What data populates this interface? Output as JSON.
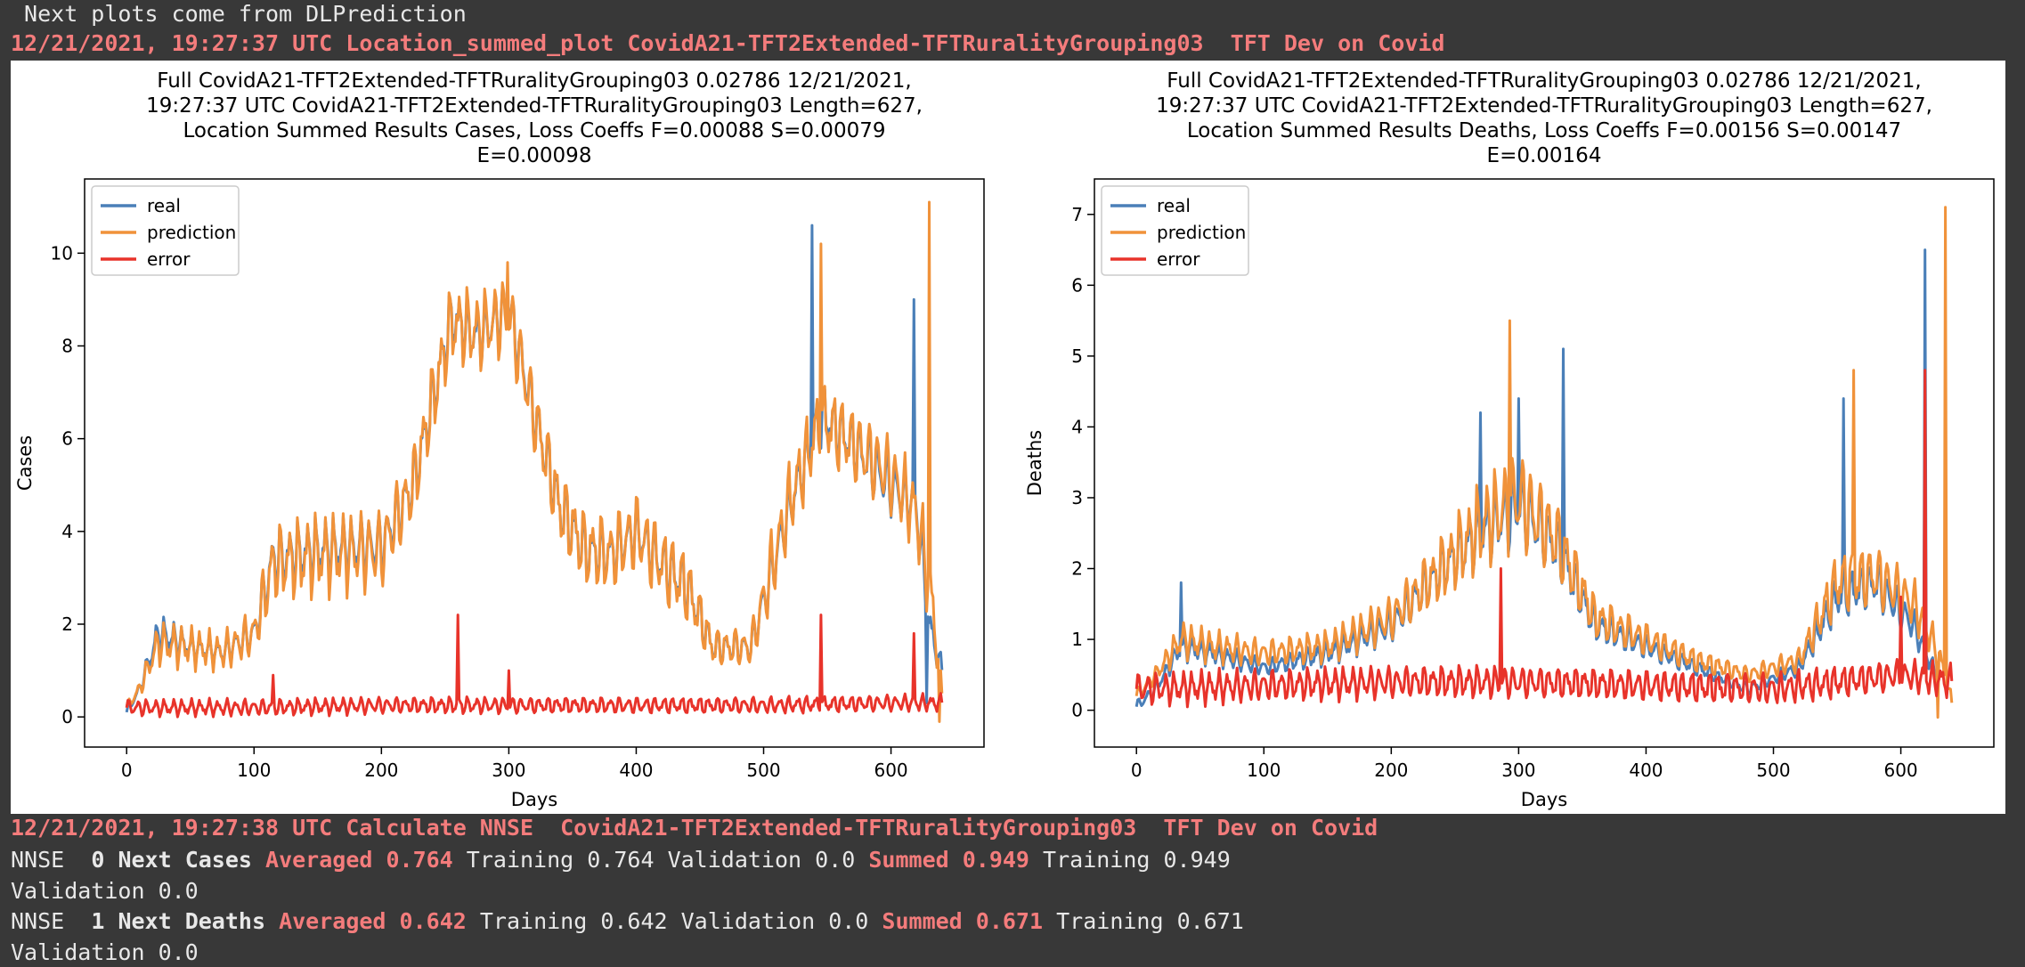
{
  "header": {
    "intro": " Next plots come from DLPrediction",
    "plot_heading": "12/21/2021, 19:27:37 UTC Location_summed_plot CovidA21-TFT2Extended-TFTRuralityGrouping03  TFT Dev on Covid"
  },
  "colors": {
    "real": "#4a7fb8",
    "prediction": "#f0923a",
    "error": "#e8332a",
    "accent_text": "#f47c7c"
  },
  "chart_data": [
    {
      "type": "line",
      "title_lines": [
        "Full CovidA21-TFT2Extended-TFTRuralityGrouping03 0.02786 12/21/2021,",
        "19:27:37 UTC CovidA21-TFT2Extended-TFTRuralityGrouping03 Length=627,",
        "Location Summed Results Cases, Loss Coeffs F=0.00088 S=0.00079",
        "E=0.00098"
      ],
      "xlabel": "Days",
      "ylabel": "Cases",
      "xlim": [
        -33,
        673
      ],
      "ylim": [
        -0.65,
        11.6
      ],
      "xticks": [
        0,
        100,
        200,
        300,
        400,
        500,
        600
      ],
      "yticks": [
        0,
        2,
        4,
        6,
        8,
        10
      ],
      "legend_position": "upper-left",
      "grid": false,
      "series": [
        {
          "name": "real",
          "key": "real",
          "keypoints": [
            [
              0,
              0.1
            ],
            [
              10,
              0.6
            ],
            [
              25,
              1.8
            ],
            [
              50,
              1.5
            ],
            [
              75,
              1.4
            ],
            [
              100,
              1.8
            ],
            [
              115,
              3.4
            ],
            [
              150,
              3.6
            ],
            [
              200,
              3.7
            ],
            [
              225,
              5.0
            ],
            [
              240,
              6.8
            ],
            [
              255,
              8.6
            ],
            [
              275,
              8.2
            ],
            [
              300,
              8.8
            ],
            [
              320,
              6.5
            ],
            [
              340,
              4.5
            ],
            [
              360,
              3.6
            ],
            [
              380,
              3.5
            ],
            [
              400,
              4.0
            ],
            [
              420,
              3.3
            ],
            [
              440,
              2.8
            ],
            [
              460,
              1.5
            ],
            [
              490,
              1.5
            ],
            [
              520,
              4.5
            ],
            [
              545,
              6.5
            ],
            [
              565,
              6.0
            ],
            [
              600,
              5.0
            ],
            [
              620,
              4.5
            ],
            [
              630,
              2.0
            ],
            [
              640,
              1.0
            ]
          ],
          "amplitude": 0.85,
          "spikes": [
            [
              538,
              10.6
            ],
            [
              618,
              9.0
            ],
            [
              628,
              0.3
            ]
          ]
        },
        {
          "name": "prediction",
          "key": "prediction",
          "keypoints": [
            [
              0,
              0.2
            ],
            [
              10,
              0.6
            ],
            [
              25,
              1.6
            ],
            [
              50,
              1.5
            ],
            [
              75,
              1.4
            ],
            [
              100,
              1.8
            ],
            [
              115,
              3.3
            ],
            [
              150,
              3.5
            ],
            [
              200,
              3.6
            ],
            [
              225,
              5.0
            ],
            [
              240,
              6.8
            ],
            [
              255,
              8.5
            ],
            [
              275,
              8.3
            ],
            [
              300,
              8.7
            ],
            [
              320,
              6.5
            ],
            [
              340,
              4.5
            ],
            [
              360,
              3.6
            ],
            [
              380,
              3.5
            ],
            [
              400,
              4.0
            ],
            [
              420,
              3.3
            ],
            [
              440,
              2.8
            ],
            [
              460,
              1.5
            ],
            [
              490,
              1.5
            ],
            [
              520,
              4.6
            ],
            [
              545,
              6.4
            ],
            [
              565,
              6.0
            ],
            [
              600,
              5.2
            ],
            [
              620,
              4.4
            ],
            [
              632,
              2.5
            ],
            [
              640,
              0.5
            ]
          ],
          "amplitude": 1.05,
          "spikes": [
            [
              299,
              9.8
            ],
            [
              545,
              10.2
            ],
            [
              630,
              11.1
            ],
            [
              638,
              -0.1
            ]
          ]
        },
        {
          "name": "error",
          "key": "error",
          "keypoints": [
            [
              0,
              0.2
            ],
            [
              100,
              0.2
            ],
            [
              200,
              0.25
            ],
            [
              300,
              0.25
            ],
            [
              400,
              0.25
            ],
            [
              500,
              0.25
            ],
            [
              600,
              0.3
            ],
            [
              640,
              0.3
            ]
          ],
          "amplitude": 0.22,
          "spikes": [
            [
              115,
              0.9
            ],
            [
              260,
              2.2
            ],
            [
              300,
              1.0
            ],
            [
              545,
              2.2
            ],
            [
              618,
              1.8
            ]
          ]
        }
      ]
    },
    {
      "type": "line",
      "title_lines": [
        "Full CovidA21-TFT2Extended-TFTRuralityGrouping03 0.02786 12/21/2021,",
        "19:27:37 UTC CovidA21-TFT2Extended-TFTRuralityGrouping03 Length=627,",
        "Location Summed Results Deaths, Loss Coeffs F=0.00156 S=0.00147",
        "E=0.00164"
      ],
      "xlabel": "Days",
      "ylabel": "Deaths",
      "xlim": [
        -33,
        673
      ],
      "ylim": [
        -0.52,
        7.5
      ],
      "xticks": [
        0,
        100,
        200,
        300,
        400,
        500,
        600
      ],
      "yticks": [
        0,
        1,
        2,
        3,
        4,
        5,
        6,
        7
      ],
      "legend_position": "upper-left",
      "grid": false,
      "series": [
        {
          "name": "real",
          "key": "real",
          "keypoints": [
            [
              0,
              0.05
            ],
            [
              15,
              0.3
            ],
            [
              35,
              0.9
            ],
            [
              60,
              0.8
            ],
            [
              100,
              0.6
            ],
            [
              150,
              0.8
            ],
            [
              200,
              1.2
            ],
            [
              240,
              2.0
            ],
            [
              270,
              2.5
            ],
            [
              300,
              2.9
            ],
            [
              330,
              2.3
            ],
            [
              360,
              1.2
            ],
            [
              400,
              0.9
            ],
            [
              440,
              0.6
            ],
            [
              480,
              0.3
            ],
            [
              520,
              0.6
            ],
            [
              550,
              1.6
            ],
            [
              580,
              1.8
            ],
            [
              610,
              1.2
            ],
            [
              630,
              0.4
            ]
          ],
          "amplitude": 0.75,
          "spikes": [
            [
              35,
              1.8
            ],
            [
              270,
              4.2
            ],
            [
              300,
              4.4
            ],
            [
              335,
              5.1
            ],
            [
              555,
              4.4
            ],
            [
              619,
              6.5
            ]
          ]
        },
        {
          "name": "prediction",
          "key": "prediction",
          "keypoints": [
            [
              0,
              0.2
            ],
            [
              15,
              0.5
            ],
            [
              35,
              1.0
            ],
            [
              60,
              0.9
            ],
            [
              100,
              0.8
            ],
            [
              150,
              0.9
            ],
            [
              200,
              1.3
            ],
            [
              240,
              2.0
            ],
            [
              270,
              2.6
            ],
            [
              300,
              3.0
            ],
            [
              330,
              2.4
            ],
            [
              360,
              1.3
            ],
            [
              400,
              1.0
            ],
            [
              440,
              0.7
            ],
            [
              480,
              0.5
            ],
            [
              520,
              0.7
            ],
            [
              550,
              1.8
            ],
            [
              580,
              1.9
            ],
            [
              610,
              1.5
            ],
            [
              630,
              0.8
            ],
            [
              640,
              0.1
            ]
          ],
          "amplitude": 0.9,
          "spikes": [
            [
              293,
              5.5
            ],
            [
              563,
              4.8
            ],
            [
              635,
              7.1
            ],
            [
              629,
              -0.1
            ]
          ]
        },
        {
          "name": "error",
          "key": "error",
          "keypoints": [
            [
              0,
              0.3
            ],
            [
              100,
              0.35
            ],
            [
              200,
              0.4
            ],
            [
              300,
              0.4
            ],
            [
              400,
              0.35
            ],
            [
              500,
              0.3
            ],
            [
              600,
              0.5
            ],
            [
              640,
              0.4
            ]
          ],
          "amplitude": 0.28,
          "spikes": [
            [
              286,
              2.0
            ],
            [
              619,
              4.8
            ],
            [
              600,
              1.6
            ]
          ]
        }
      ]
    }
  ],
  "nnse": {
    "heading": "12/21/2021, 19:27:38 UTC Calculate NNSE  CovidA21-TFT2Extended-TFTRuralityGrouping03  TFT Dev on Covid",
    "rows": [
      {
        "prefix": "NNSE  ",
        "id": "0",
        "label": "Next Cases",
        "averaged": "Averaged 0.764",
        "avg_rest": "Training 0.764 Validation 0.0",
        "summed": "Summed 0.949",
        "sum_rest": "Training 0.949",
        "validation": "Validation 0.0"
      },
      {
        "prefix": "NNSE  ",
        "id": "1",
        "label": "Next Deaths",
        "averaged": "Averaged 0.642",
        "avg_rest": "Training 0.642 Validation 0.0",
        "summed": "Summed 0.671",
        "sum_rest": "Training 0.671",
        "validation": "Validation 0.0"
      }
    ]
  }
}
